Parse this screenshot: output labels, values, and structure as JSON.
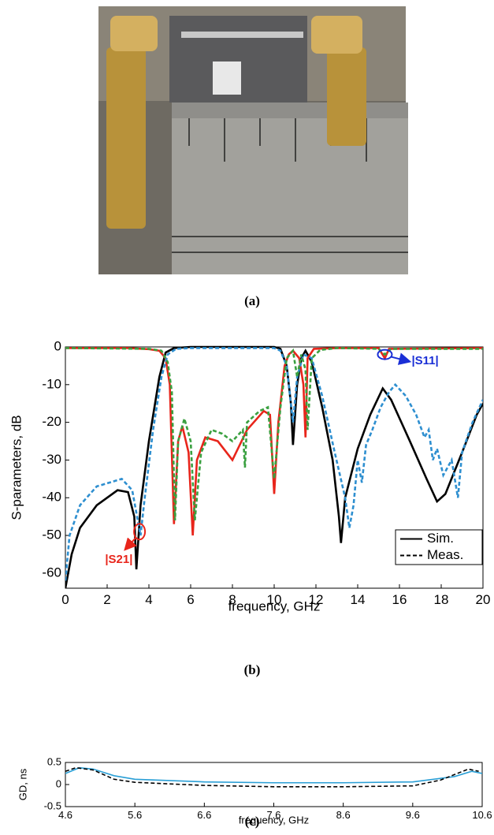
{
  "captions": [
    "(a)",
    "(b)",
    "(c)"
  ],
  "chart_data": [
    {
      "type": "line",
      "xlabel": "frequency, GHz",
      "ylabel": "S-parameters, dB",
      "xlim": [
        0,
        20
      ],
      "xticks": [
        0,
        2,
        4,
        6,
        8,
        10,
        12,
        14,
        16,
        18,
        20
      ],
      "ylim": [
        -64,
        0
      ],
      "yticks": [
        0,
        -10,
        -20,
        -30,
        -40,
        -50,
        -60
      ],
      "legend_position": "lower right",
      "legend": [
        {
          "label": "Sim.",
          "dash": "solid"
        },
        {
          "label": "Meas.",
          "dash": "dashed"
        }
      ],
      "annotations": [
        "|S11|",
        "|S21|"
      ],
      "series": [
        {
          "color": "#000000",
          "dash": "solid",
          "x": [
            0,
            0.3,
            0.7,
            1.5,
            2.5,
            3,
            3.3,
            3.4,
            3.6,
            4,
            4.5,
            4.8,
            5.2,
            6,
            8,
            10,
            10.3,
            10.6,
            10.8,
            10.9,
            11.1,
            11.3,
            11.5,
            11.8,
            12.3,
            12.8,
            13.1,
            13.2,
            13.4,
            14,
            14.6,
            15.2,
            15.6,
            16.5,
            17.3,
            17.8,
            18.2,
            19,
            19.7,
            20
          ],
          "values": [
            -64,
            -55,
            -48,
            -42,
            -38,
            -38.5,
            -45,
            -59,
            -42,
            -25,
            -8,
            -1.5,
            -0.3,
            0,
            0,
            0,
            -0.5,
            -5,
            -15,
            -26,
            -10,
            -3,
            -1,
            -4,
            -16,
            -30,
            -45,
            -52,
            -40,
            -27,
            -18,
            -11,
            -14,
            -25,
            -35,
            -41,
            -39,
            -28,
            -18,
            -15
          ]
        },
        {
          "color": "#e8251b",
          "dash": "solid",
          "x": [
            0,
            3,
            4,
            4.5,
            4.8,
            5,
            5.2,
            5.4,
            5.6,
            5.9,
            6.1,
            6.3,
            6.7,
            7.3,
            8,
            8.7,
            9.5,
            9.8,
            10,
            10.2,
            10.5,
            10.7,
            10.9,
            11.2,
            11.4,
            11.5,
            11.6,
            11.9,
            13,
            15,
            15.3,
            15.5,
            20
          ],
          "values": [
            -0.3,
            -0.3,
            -0.6,
            -1,
            -3,
            -10,
            -47,
            -25,
            -21,
            -28,
            -50,
            -30,
            -24,
            -25,
            -30,
            -22,
            -17,
            -18,
            -39,
            -20,
            -5,
            -2,
            -1,
            -3,
            -10,
            -24,
            -3,
            -0.5,
            -0.3,
            -0.3,
            -3,
            -0.5,
            -0.3
          ]
        },
        {
          "color": "#2e8fd0",
          "dash": "dashed",
          "x": [
            0,
            0.2,
            0.7,
            1.5,
            2.7,
            3.2,
            3.6,
            3.8,
            4.2,
            4.6,
            4.9,
            5.3,
            6,
            10,
            10.3,
            10.6,
            10.9,
            11.1,
            11.4,
            11.8,
            12.3,
            12.9,
            13.4,
            13.6,
            13.8,
            14,
            14.2,
            14.4,
            14.7,
            15.1,
            15.5,
            15.8,
            16.3,
            16.8,
            17.2,
            17.4,
            17.6,
            17.8,
            18.1,
            18.5,
            18.8,
            19,
            19.5,
            20
          ],
          "values": [
            -62,
            -50,
            -42,
            -37,
            -35,
            -38,
            -50,
            -40,
            -22,
            -8,
            -2,
            -0.5,
            -0.3,
            -0.3,
            -1,
            -5,
            -20,
            -8,
            -2,
            -3,
            -13,
            -28,
            -40,
            -48,
            -42,
            -30,
            -36,
            -26,
            -22,
            -16,
            -12,
            -10,
            -13,
            -18,
            -24,
            -22,
            -30,
            -27,
            -34,
            -30,
            -40,
            -28,
            -20,
            -14
          ]
        },
        {
          "color": "#3aa040",
          "dash": "dashed",
          "x": [
            0,
            4,
            4.6,
            4.9,
            5.1,
            5.25,
            5.4,
            5.7,
            6,
            6.2,
            6.5,
            7,
            7.5,
            8,
            8.5,
            8.6,
            8.7,
            9.3,
            9.7,
            10,
            10.3,
            10.6,
            10.9,
            11.1,
            11.3,
            11.5,
            11.6,
            11.8,
            12.2,
            13,
            15,
            15.3,
            15.6,
            20
          ],
          "values": [
            -0.3,
            -0.5,
            -1,
            -4,
            -12,
            -46,
            -25,
            -19,
            -25,
            -46,
            -28,
            -22,
            -23,
            -25,
            -22,
            -32,
            -20,
            -17,
            -16,
            -35,
            -16,
            -3,
            -1,
            -8,
            -2,
            -6,
            -22,
            -3,
            -0.8,
            -0.3,
            -0.5,
            -2,
            -0.5,
            -0.5
          ]
        }
      ]
    },
    {
      "type": "line",
      "xlabel": "frequency, GHz",
      "ylabel": "GD, ns",
      "xlim": [
        4.6,
        10.6
      ],
      "xticks": [
        4.6,
        5.6,
        6.6,
        7.6,
        8.6,
        9.6,
        10.6
      ],
      "ylim": [
        -0.5,
        0.5
      ],
      "yticks": [
        0.5,
        0,
        -0.5
      ],
      "series": [
        {
          "color": "#2a9fd6",
          "dash": "solid",
          "x": [
            4.6,
            4.8,
            5,
            5.3,
            5.6,
            6.6,
            7.6,
            8.6,
            9.6,
            10.2,
            10.45,
            10.6
          ],
          "values": [
            0.25,
            0.38,
            0.35,
            0.2,
            0.12,
            0.06,
            0.04,
            0.04,
            0.06,
            0.18,
            0.3,
            0.25
          ]
        },
        {
          "color": "#000000",
          "dash": "dashed",
          "x": [
            4.6,
            4.75,
            5,
            5.3,
            5.6,
            6.6,
            7.6,
            8.6,
            9.6,
            10,
            10.4,
            10.55
          ],
          "values": [
            0.3,
            0.38,
            0.33,
            0.12,
            0.05,
            -0.02,
            -0.05,
            -0.05,
            -0.03,
            0.1,
            0.35,
            0.3
          ]
        }
      ]
    }
  ]
}
